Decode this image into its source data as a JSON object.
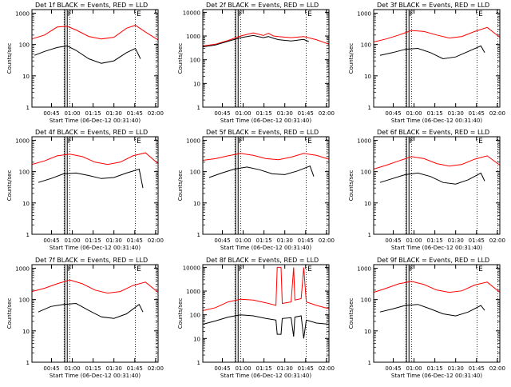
{
  "chart_data": [
    {
      "type": "line",
      "title": "Det 1f BLACK = Events, RED = LLD",
      "xlabel": "Start Time (06-Dec-12 00:31:40)",
      "ylabel": "Counts/sec",
      "x_ticks": [
        "00:45",
        "01:00",
        "01:15",
        "01:30",
        "01:45",
        "02:00"
      ],
      "y_ticks": [
        "1",
        "10",
        "100",
        "1000"
      ],
      "y_scale": "log",
      "ylim": [
        1,
        1300
      ],
      "markers": [
        "F",
        "E"
      ],
      "series": [
        {
          "name": "LLD",
          "color": "#ff0000",
          "x": [
            0,
            10,
            20,
            28,
            35,
            45,
            55,
            65,
            75,
            82,
            90,
            100
          ],
          "values": [
            150,
            200,
            360,
            380,
            290,
            180,
            150,
            170,
            330,
            410,
            250,
            140
          ]
        },
        {
          "name": "Events",
          "color": "#000000",
          "x": [
            2,
            10,
            20,
            28,
            35,
            45,
            55,
            65,
            75,
            82,
            86
          ],
          "values": [
            45,
            60,
            80,
            90,
            65,
            35,
            25,
            30,
            55,
            75,
            35
          ]
        }
      ]
    },
    {
      "type": "line",
      "title": "Det 2f BLACK = Events, RED = LLD",
      "xlabel": "Start Time (06-Dec-12 00:31:40)",
      "ylabel": "Counts/sec",
      "x_ticks": [
        "00:45",
        "01:00",
        "01:15",
        "01:30",
        "01:45",
        "02:00"
      ],
      "y_ticks": [
        "1",
        "10",
        "100",
        "1000",
        "10000"
      ],
      "y_scale": "log",
      "ylim": [
        1,
        13000
      ],
      "markers": [
        "F",
        "E"
      ],
      "series": [
        {
          "name": "LLD",
          "color": "#ff0000",
          "x": [
            0,
            10,
            20,
            30,
            40,
            48,
            52,
            56,
            60,
            70,
            80,
            90,
            100
          ],
          "values": [
            380,
            450,
            650,
            1000,
            1350,
            1050,
            1300,
            1000,
            950,
            850,
            950,
            700,
            450
          ]
        },
        {
          "name": "Events",
          "color": "#000000",
          "x": [
            0,
            10,
            20,
            30,
            40,
            48,
            52,
            56,
            60,
            70,
            80,
            84
          ],
          "values": [
            350,
            420,
            600,
            850,
            1050,
            850,
            950,
            800,
            700,
            620,
            720,
            580
          ]
        }
      ]
    },
    {
      "type": "line",
      "title": "Det 3f BLACK = Events, RED = LLD",
      "xlabel": "Start Time (06-Dec-12 00:31:40)",
      "ylabel": "Counts/sec",
      "x_ticks": [
        "00:45",
        "01:00",
        "01:15",
        "01:30",
        "01:45",
        "02:00"
      ],
      "y_ticks": [
        "1",
        "10",
        "100",
        "1000"
      ],
      "y_scale": "log",
      "ylim": [
        1,
        1300
      ],
      "markers": [
        "F",
        "E"
      ],
      "series": [
        {
          "name": "LLD",
          "color": "#ff0000",
          "x": [
            0,
            10,
            20,
            30,
            40,
            50,
            60,
            70,
            80,
            90,
            100
          ],
          "values": [
            120,
            150,
            200,
            280,
            260,
            200,
            160,
            180,
            260,
            350,
            170
          ]
        },
        {
          "name": "Events",
          "color": "#000000",
          "x": [
            5,
            15,
            25,
            35,
            45,
            55,
            65,
            75,
            85,
            88
          ],
          "values": [
            45,
            55,
            70,
            75,
            55,
            35,
            40,
            60,
            90,
            55
          ]
        }
      ]
    },
    {
      "type": "line",
      "title": "Det 4f BLACK = Events, RED = LLD",
      "xlabel": "Start Time (06-Dec-12 00:31:40)",
      "ylabel": "Counts/sec",
      "x_ticks": [
        "00:45",
        "01:00",
        "01:15",
        "01:30",
        "01:45",
        "02:00"
      ],
      "y_ticks": [
        "1",
        "10",
        "100",
        "1000"
      ],
      "y_scale": "log",
      "ylim": [
        1,
        1300
      ],
      "markers": [
        "F",
        "E"
      ],
      "series": [
        {
          "name": "LLD",
          "color": "#ff0000",
          "x": [
            0,
            10,
            20,
            30,
            40,
            50,
            60,
            70,
            80,
            90,
            100
          ],
          "values": [
            170,
            220,
            320,
            360,
            300,
            200,
            170,
            200,
            320,
            400,
            180
          ]
        },
        {
          "name": "Events",
          "color": "#000000",
          "x": [
            5,
            15,
            25,
            35,
            45,
            55,
            65,
            75,
            85,
            88
          ],
          "values": [
            45,
            60,
            85,
            90,
            75,
            60,
            65,
            90,
            120,
            30
          ]
        }
      ]
    },
    {
      "type": "line",
      "title": "Det 5f BLACK = Events, RED = LLD",
      "xlabel": "Start Time (06-Dec-12 00:31:40)",
      "ylabel": "Counts/sec",
      "x_ticks": [
        "00:45",
        "01:00",
        "01:15",
        "01:30",
        "01:45",
        "02:00"
      ],
      "y_ticks": [
        "1",
        "10",
        "100",
        "1000"
      ],
      "y_scale": "log",
      "ylim": [
        1,
        1300
      ],
      "markers": [
        "F",
        "E"
      ],
      "series": [
        {
          "name": "LLD",
          "color": "#ff0000",
          "x": [
            0,
            10,
            20,
            30,
            40,
            50,
            60,
            70,
            80,
            90,
            100
          ],
          "values": [
            230,
            260,
            320,
            380,
            330,
            260,
            240,
            290,
            380,
            330,
            250
          ]
        },
        {
          "name": "Events",
          "color": "#000000",
          "x": [
            5,
            15,
            25,
            35,
            45,
            55,
            65,
            75,
            85,
            88
          ],
          "values": [
            65,
            90,
            120,
            140,
            115,
            85,
            80,
            105,
            150,
            70
          ]
        }
      ]
    },
    {
      "type": "line",
      "title": "Det 6f BLACK = Events, RED = LLD",
      "xlabel": "Start Time (06-Dec-12 00:31:40)",
      "ylabel": "Counts/sec",
      "x_ticks": [
        "00:45",
        "01:00",
        "01:15",
        "01:30",
        "01:45",
        "02:00"
      ],
      "y_ticks": [
        "1",
        "10",
        "100",
        "1000"
      ],
      "y_scale": "log",
      "ylim": [
        1,
        1300
      ],
      "markers": [
        "F",
        "E"
      ],
      "series": [
        {
          "name": "LLD",
          "color": "#ff0000",
          "x": [
            0,
            10,
            20,
            30,
            40,
            50,
            60,
            70,
            80,
            90,
            100
          ],
          "values": [
            120,
            160,
            220,
            300,
            260,
            180,
            150,
            170,
            250,
            320,
            160
          ]
        },
        {
          "name": "Events",
          "color": "#000000",
          "x": [
            5,
            15,
            25,
            35,
            45,
            55,
            65,
            75,
            85,
            88
          ],
          "values": [
            45,
            60,
            80,
            90,
            70,
            45,
            40,
            55,
            90,
            50
          ]
        }
      ]
    },
    {
      "type": "line",
      "title": "Det 7f BLACK = Events, RED = LLD",
      "xlabel": "Start Time (06-Dec-12 00:31:40)",
      "ylabel": "Counts/sec",
      "x_ticks": [
        "00:45",
        "01:00",
        "01:15",
        "01:30",
        "01:45",
        "02:00"
      ],
      "y_ticks": [
        "1",
        "10",
        "100",
        "1000"
      ],
      "y_scale": "log",
      "ylim": [
        1,
        1300
      ],
      "markers": [
        "F",
        "E"
      ],
      "series": [
        {
          "name": "LLD",
          "color": "#ff0000",
          "x": [
            0,
            10,
            20,
            30,
            40,
            50,
            60,
            70,
            80,
            90,
            100
          ],
          "values": [
            180,
            230,
            320,
            420,
            320,
            200,
            160,
            180,
            280,
            360,
            170
          ]
        },
        {
          "name": "Events",
          "color": "#000000",
          "x": [
            5,
            15,
            25,
            35,
            45,
            55,
            65,
            75,
            85,
            88
          ],
          "values": [
            40,
            60,
            70,
            75,
            45,
            28,
            25,
            35,
            70,
            40
          ]
        }
      ]
    },
    {
      "type": "line",
      "title": "Det 8f BLACK = Events, RED = LLD",
      "xlabel": "Start Time (06-Dec-12 00:31:40)",
      "ylabel": "Counts/sec",
      "x_ticks": [
        "00:45",
        "01:00",
        "01:15",
        "01:30",
        "01:45",
        "02:00"
      ],
      "y_ticks": [
        "1",
        "10",
        "100",
        "1000",
        "10000"
      ],
      "y_scale": "log",
      "ylim": [
        1,
        13000
      ],
      "markers": [
        "F",
        "E"
      ],
      "series": [
        {
          "name": "LLD",
          "color": "#ff0000",
          "x": [
            0,
            10,
            20,
            30,
            40,
            50,
            58,
            59,
            62,
            63,
            70,
            72,
            73,
            78,
            80,
            82,
            90,
            100
          ],
          "values": [
            150,
            200,
            350,
            450,
            420,
            320,
            250,
            10000,
            10000,
            300,
            350,
            10000,
            420,
            480,
            10000,
            350,
            250,
            180
          ]
        },
        {
          "name": "Events",
          "color": "#000000",
          "x": [
            0,
            10,
            20,
            30,
            40,
            50,
            58,
            59,
            62,
            63,
            70,
            72,
            73,
            78,
            80,
            82,
            90,
            100
          ],
          "values": [
            40,
            55,
            80,
            100,
            90,
            70,
            60,
            15,
            15,
            70,
            75,
            12,
            80,
            90,
            10,
            60,
            45,
            40
          ]
        }
      ]
    },
    {
      "type": "line",
      "title": "Det 9f BLACK = Events, RED = LLD",
      "xlabel": "Start Time (06-Dec-12 00:31:40)",
      "ylabel": "Counts/sec",
      "x_ticks": [
        "00:45",
        "01:00",
        "01:15",
        "01:30",
        "01:45",
        "02:00"
      ],
      "y_ticks": [
        "1",
        "10",
        "100",
        "1000"
      ],
      "y_scale": "log",
      "ylim": [
        1,
        1300
      ],
      "markers": [
        "F",
        "E"
      ],
      "series": [
        {
          "name": "LLD",
          "color": "#ff0000",
          "x": [
            0,
            10,
            20,
            30,
            40,
            50,
            60,
            70,
            80,
            90,
            100
          ],
          "values": [
            170,
            230,
            320,
            380,
            300,
            200,
            170,
            190,
            290,
            360,
            170
          ]
        },
        {
          "name": "Events",
          "color": "#000000",
          "x": [
            5,
            15,
            25,
            35,
            45,
            55,
            65,
            75,
            85,
            88
          ],
          "values": [
            40,
            50,
            65,
            70,
            50,
            35,
            30,
            40,
            65,
            45
          ]
        }
      ]
    }
  ]
}
